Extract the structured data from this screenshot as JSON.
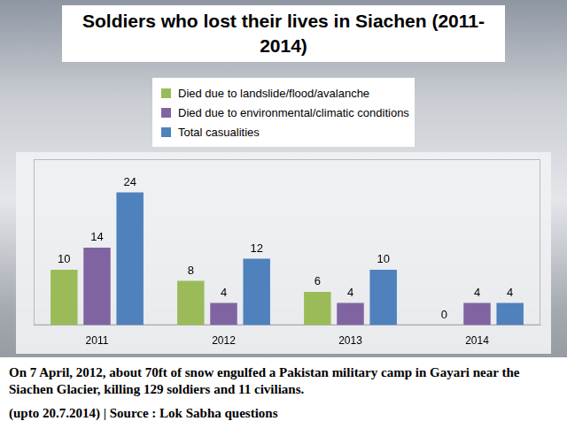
{
  "chart_data": {
    "type": "bar",
    "title": "Soldiers who lost their lives in Siachen (2011-2014)",
    "categories": [
      "2011",
      "2012",
      "2013",
      "2014"
    ],
    "series": [
      {
        "name": "Died due to landslide/flood/avalanche",
        "color": "#9bbb59",
        "values": [
          10,
          8,
          6,
          0
        ]
      },
      {
        "name": "Died due to environmental/climatic conditions",
        "color": "#8064a2",
        "values": [
          14,
          4,
          4,
          4
        ]
      },
      {
        "name": "Total casualities",
        "color": "#4f81bd",
        "values": [
          24,
          12,
          10,
          4
        ]
      }
    ],
    "ylim": [
      0,
      30
    ],
    "tick_labels": "x",
    "grid": false,
    "legend": "top",
    "data_labels": true,
    "annotations": [
      "On 7 April, 2012, about 70ft of snow engulfed a Pakistan military camp in Gayari near the Siachen Glacier, killing 129 soldiers and 11 civilians.",
      "(upto 20.7.2014) | Source : Lok Sabha questions"
    ]
  }
}
